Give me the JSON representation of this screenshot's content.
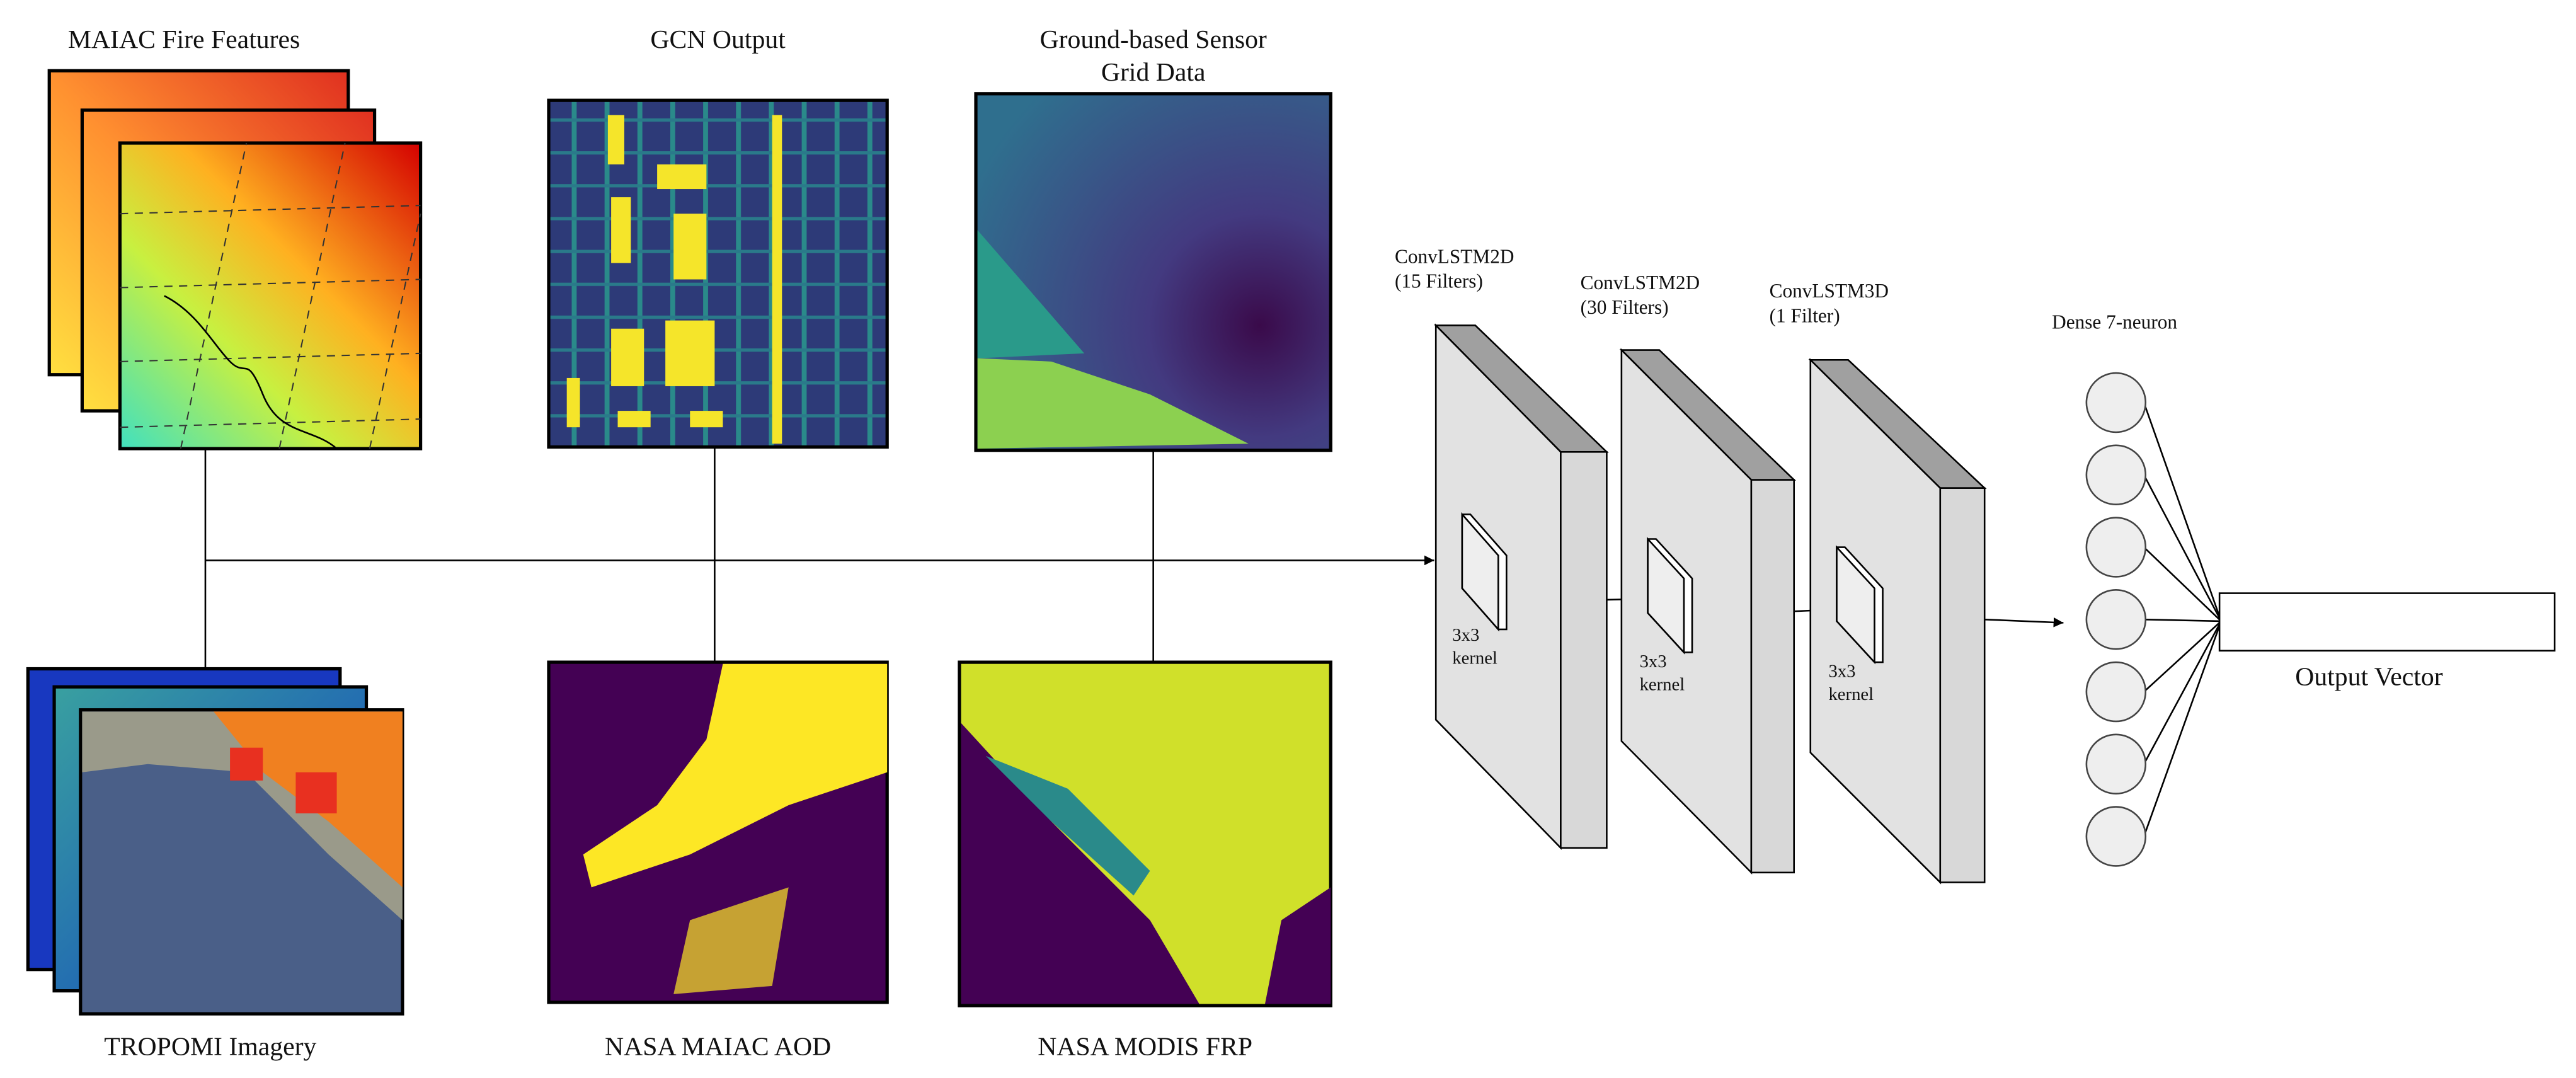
{
  "inputs": {
    "maiac": "MAIAC Fire Features",
    "gcn": "GCN Output",
    "sensor": [
      "Ground-based Sensor",
      "Grid Data"
    ],
    "tropomi": "TROPOMI Imagery",
    "aod": "NASA MAIAC AOD",
    "frp": "NASA MODIS FRP"
  },
  "layers": [
    {
      "name": [
        "ConvLSTM2D",
        "(15 Filters)"
      ],
      "kernel": [
        "3x3",
        "kernel"
      ]
    },
    {
      "name": [
        "ConvLSTM2D",
        "(30 Filters)"
      ],
      "kernel": [
        "3x3",
        "kernel"
      ]
    },
    {
      "name": [
        "ConvLSTM3D",
        "(1 Filter)"
      ],
      "kernel": [
        "3x3",
        "kernel"
      ]
    }
  ],
  "dense": "Dense 7-neuron",
  "output": "Output Vector"
}
